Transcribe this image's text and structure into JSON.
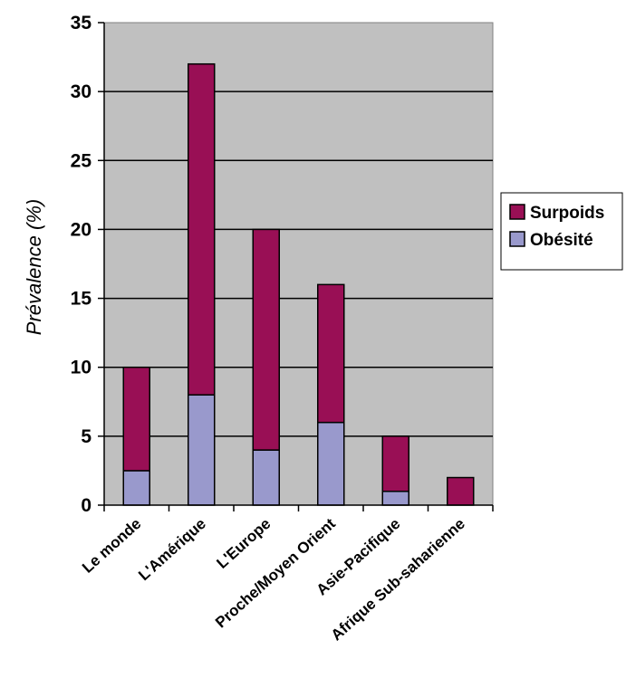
{
  "chart_data": {
    "type": "bar",
    "stacked": true,
    "title": "",
    "xlabel": "",
    "ylabel": "Prévalence (%)",
    "categories": [
      "Le monde",
      "L'Amérique",
      "L'Europe",
      "Proche/Moyen Orient",
      "Asie-Pacifique",
      "Afrique Sub-saharienne"
    ],
    "series": [
      {
        "name": "Obésité",
        "values": [
          2.5,
          8,
          4,
          6,
          1,
          0
        ],
        "color": "#9999cc"
      },
      {
        "name": "Surpoids",
        "values": [
          7.5,
          24,
          16,
          10,
          4,
          2
        ],
        "color": "#990f55"
      }
    ],
    "totals": [
      10,
      32,
      20,
      16,
      5,
      2
    ],
    "ylim": [
      0,
      35
    ],
    "yticks": [
      0,
      5,
      10,
      15,
      20,
      25,
      30,
      35
    ],
    "grid": true,
    "plot_background": "#c0c0c0",
    "legend_position": "right",
    "legend_order": [
      "Surpoids",
      "Obésité"
    ]
  }
}
